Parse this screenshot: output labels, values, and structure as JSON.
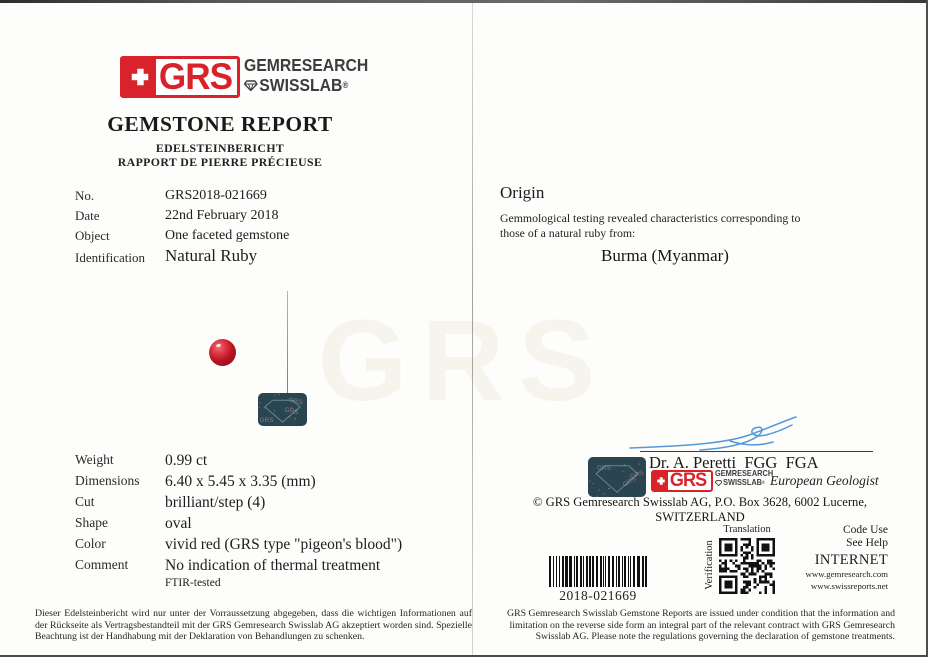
{
  "report": {
    "logo": {
      "grs": "GRS",
      "company_line1": "GEMRESEARCH",
      "company_line2": "SWISSLAB",
      "registered_mark": "®"
    },
    "title": "GEMSTONE REPORT",
    "subtitle_de": "EDELSTEINBERICHT",
    "subtitle_fr": "RAPPORT DE PIERRE PRÉCIEUSE",
    "details": [
      {
        "label": "No.",
        "value": "GRS2018-021669"
      },
      {
        "label": "Date",
        "value": "22nd February 2018"
      },
      {
        "label": "Object",
        "value": "One faceted gemstone"
      },
      {
        "label": "Identification",
        "value": "Natural Ruby"
      }
    ],
    "properties": [
      {
        "label": "Weight",
        "value": "0.99 ct"
      },
      {
        "label": "Dimensions",
        "value": "6.40 x 5.45 x 3.35 (mm)"
      },
      {
        "label": "Cut",
        "value": "brilliant/step (4)"
      },
      {
        "label": "Shape",
        "value": "oval"
      },
      {
        "label": "Color",
        "value": "vivid red (GRS type \"pigeon's blood\")"
      },
      {
        "label": "Comment",
        "value": "No indication of thermal treatment"
      }
    ],
    "comment_note": "FTIR-tested",
    "origin": {
      "heading": "Origin",
      "body": "Gemmological testing revealed characteristics corresponding to those of a natural ruby from:",
      "result": "Burma (Myanmar)"
    },
    "signature": {
      "name": "Dr. A. Peretti  FGG  FGA",
      "title": "European Geologist",
      "copyright": "© GRS Gemresearch Swisslab AG, P.O. Box 3628, 6002 Lucerne, SWITZERLAND"
    },
    "verification": {
      "barcode_number": "2018-021669",
      "qr_top_label": "Translation",
      "qr_side_label": "Verification",
      "line1": "Code Use",
      "line2": "See Help",
      "line3": "INTERNET",
      "url1": "www.gemresearch.com",
      "url2": "www.swissreports.net"
    },
    "watermark": "GRS",
    "disclaimer_de": "Dieser Edelsteinbericht wird nur unter der Vorraussetzung abgegeben, dass die wichtigen Informationen auf der Rückseite als Vertragsbestandteil mit der GRS Gemresearch Swisslab AG akzeptiert worden sind. Spezielle Beachtung ist der Handhabung mit der Deklaration von Behandlungen zu schenken.",
    "disclaimer_en": "GRS Gemresearch Swisslab Gemstone Reports are issued under condition that the information and limitation on the reverse side form an integral part of the relevant contract with GRS Gemresearch Swisslab AG. Please note the regulations governing the declaration of gemstone treatments."
  },
  "colors": {
    "logo_red": "#d8232a",
    "ruby_red": "#b51323",
    "signature_blue": "#4a90d4",
    "sticker_teal": "#2a4450"
  }
}
